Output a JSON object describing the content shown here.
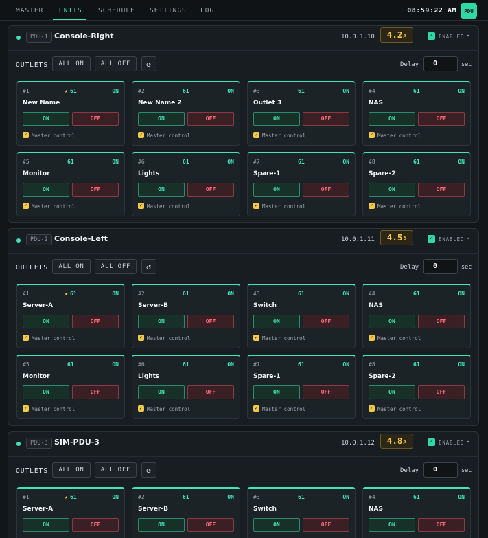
{
  "nav": {
    "tabs": [
      "MASTER",
      "UNITS",
      "SCHEDULE",
      "SETTINGS",
      "LOG"
    ],
    "active_tab": "UNITS",
    "clock": "08:59:22 AM",
    "badge": "PDU"
  },
  "labels": {
    "outlets": "OUTLETS",
    "all_on": "ALL ON",
    "all_off": "ALL OFF",
    "refresh_icon": "↺",
    "delay": "Delay",
    "sec": "sec",
    "enabled": "ENABLED",
    "on": "ON",
    "off": "OFF",
    "master_control": "Master control",
    "check": "✓",
    "caret": "▾",
    "amp_unit": "A"
  },
  "colors": {
    "accent": "#3ee6b6",
    "amps": "#f3c94a",
    "off": "#ff6b7a"
  },
  "units": [
    {
      "id": "PDU-1",
      "name": "Console-Right",
      "ip": "10.0.1.10",
      "amps": "4.2",
      "delay": "0",
      "outlets": [
        {
          "num": "#1",
          "star": "★",
          "code": "61",
          "name": "New Name",
          "status": "ON"
        },
        {
          "num": "#2",
          "star": "",
          "code": "61",
          "name": "New Name 2",
          "status": "ON"
        },
        {
          "num": "#3",
          "star": "",
          "code": "61",
          "name": "Outlet 3",
          "status": "ON"
        },
        {
          "num": "#4",
          "star": "",
          "code": "61",
          "name": "NAS",
          "status": "ON"
        },
        {
          "num": "#5",
          "star": "",
          "code": "61",
          "name": "Monitor",
          "status": "ON"
        },
        {
          "num": "#6",
          "star": "",
          "code": "61",
          "name": "Lights",
          "status": "ON"
        },
        {
          "num": "#7",
          "star": "",
          "code": "61",
          "name": "Spare-1",
          "status": "ON"
        },
        {
          "num": "#8",
          "star": "",
          "code": "61",
          "name": "Spare-2",
          "status": "ON"
        }
      ]
    },
    {
      "id": "PDU-2",
      "name": "Console-Left",
      "ip": "10.0.1.11",
      "amps": "4.5",
      "delay": "0",
      "outlets": [
        {
          "num": "#1",
          "star": "★",
          "code": "61",
          "name": "Server-A",
          "status": "ON"
        },
        {
          "num": "#2",
          "star": "",
          "code": "61",
          "name": "Server-B",
          "status": "ON"
        },
        {
          "num": "#3",
          "star": "",
          "code": "61",
          "name": "Switch",
          "status": "ON"
        },
        {
          "num": "#4",
          "star": "",
          "code": "61",
          "name": "NAS",
          "status": "ON"
        },
        {
          "num": "#5",
          "star": "",
          "code": "61",
          "name": "Monitor",
          "status": "ON"
        },
        {
          "num": "#6",
          "star": "",
          "code": "61",
          "name": "Lights",
          "status": "ON"
        },
        {
          "num": "#7",
          "star": "",
          "code": "61",
          "name": "Spare-1",
          "status": "ON"
        },
        {
          "num": "#8",
          "star": "",
          "code": "61",
          "name": "Spare-2",
          "status": "ON"
        }
      ]
    },
    {
      "id": "PDU-3",
      "name": "SIM-PDU-3",
      "ip": "10.0.1.12",
      "amps": "4.8",
      "delay": "0",
      "outlets": [
        {
          "num": "#1",
          "star": "★",
          "code": "61",
          "name": "Server-A",
          "status": "ON"
        },
        {
          "num": "#2",
          "star": "",
          "code": "61",
          "name": "Server-B",
          "status": "ON"
        },
        {
          "num": "#3",
          "star": "",
          "code": "61",
          "name": "Switch",
          "status": "ON"
        },
        {
          "num": "#4",
          "star": "",
          "code": "61",
          "name": "NAS",
          "status": "ON"
        }
      ]
    }
  ]
}
